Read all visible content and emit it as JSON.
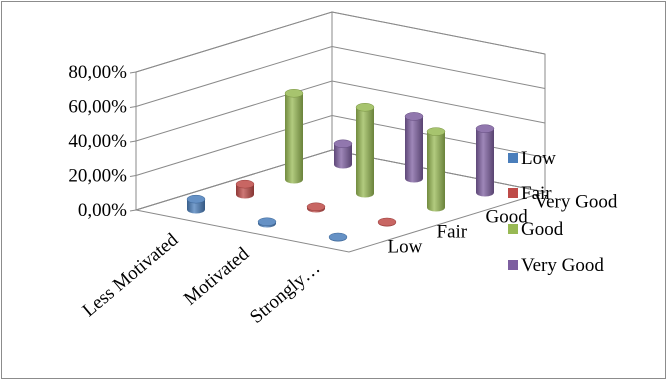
{
  "chart_data": {
    "type": "bar",
    "subtype": "3d-cylinder",
    "title": "",
    "categories": [
      "Less Motivated",
      "Motivated",
      "Strongly…"
    ],
    "series": [
      {
        "name": "Low",
        "color": "#4a7ebb",
        "values": [
          6,
          1,
          0
        ]
      },
      {
        "name": "Fair",
        "color": "#be4b48",
        "values": [
          6,
          1,
          0
        ]
      },
      {
        "name": "Good",
        "color": "#98b954",
        "values": [
          50,
          50,
          44
        ]
      },
      {
        "name": "Very Good",
        "color": "#7d5fa0",
        "values": [
          12,
          36,
          37
        ]
      }
    ],
    "y_ticks": [
      "0,00%",
      "20,00%",
      "40,00%",
      "60,00%",
      "80,00%"
    ],
    "ylim": [
      0,
      80
    ],
    "depth_labels": [
      "Low",
      "Fair",
      "Good",
      "Very Good"
    ],
    "grid": true,
    "legend_position": "right"
  }
}
